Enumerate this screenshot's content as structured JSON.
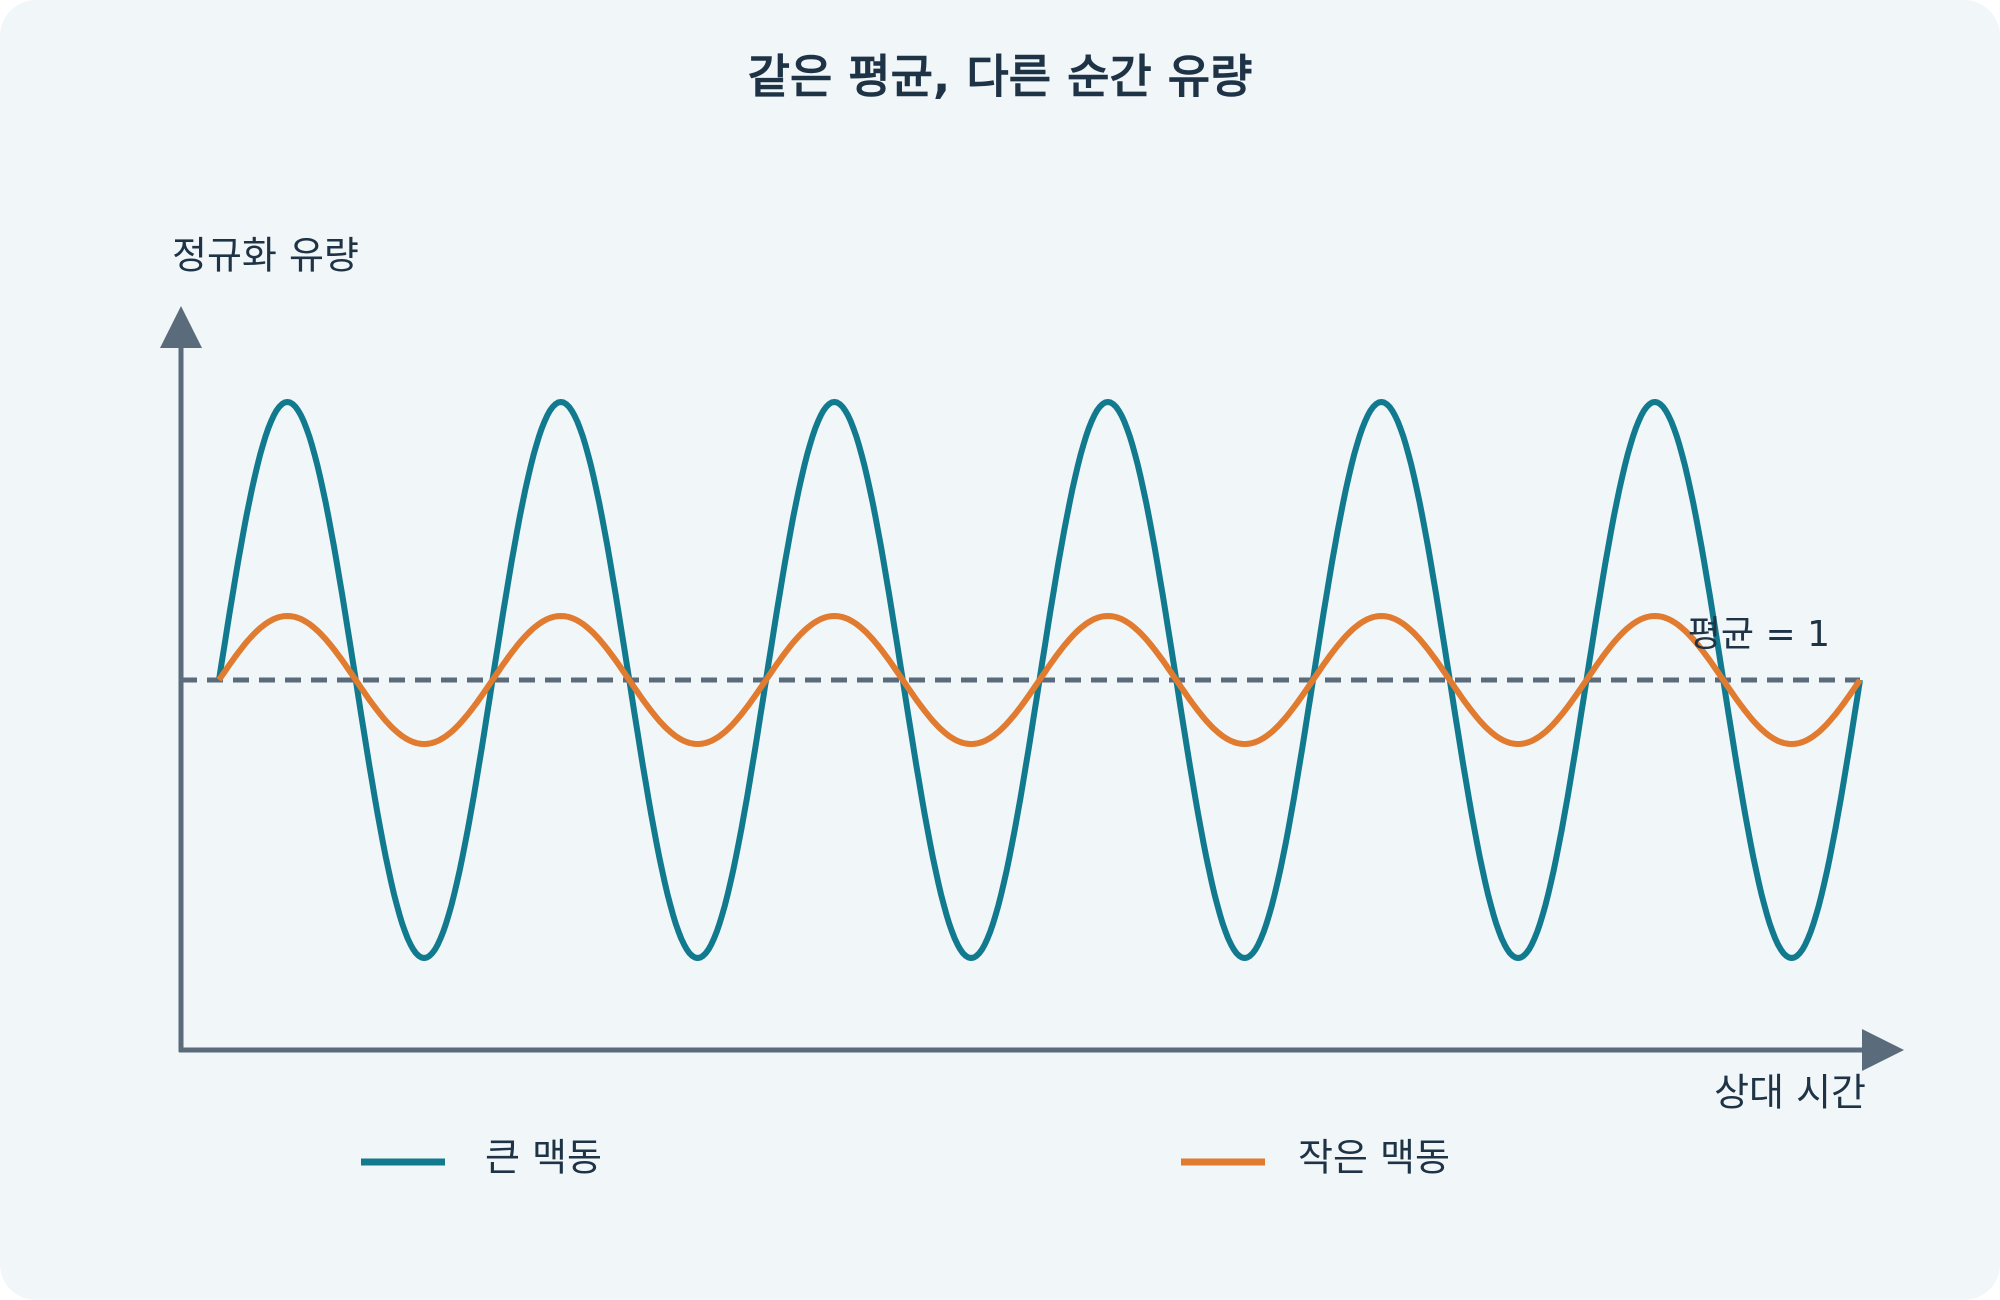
{
  "title": "같은 평균, 다른 순간 유량",
  "y_axis_label": "정규화 유량",
  "x_axis_label": "상대 시간",
  "mean_label": "평균 = 1",
  "series": [
    {
      "name": "큰 맥동",
      "color": "#127a8f"
    },
    {
      "name": "작은 맥동",
      "color": "#e07b30"
    }
  ]
}
